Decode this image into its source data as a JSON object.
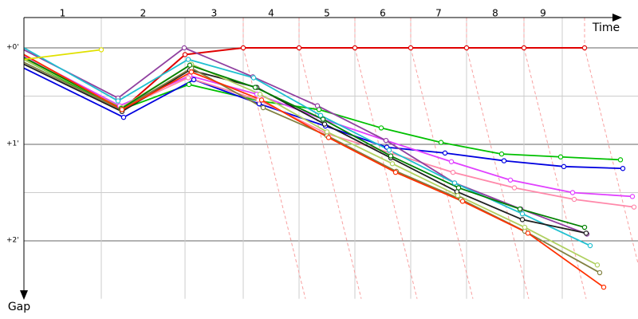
{
  "chart_data": {
    "type": "line",
    "x_label": "Time",
    "y_label": "Gap",
    "xlim": [
      0,
      77
    ],
    "ylim": [
      -0.314,
      2.6
    ],
    "yticks": [
      {
        "value": 0,
        "label": "+0'"
      },
      {
        "value": 1,
        "label": "+1'"
      },
      {
        "value": 2,
        "label": "+2'"
      }
    ],
    "minor_yticks": [
      0.5,
      1.5
    ],
    "laps": {
      "labels": [
        "1",
        "2",
        "3",
        "4",
        "5",
        "6",
        "7",
        "8",
        "9"
      ],
      "bounds": [
        0,
        9.7,
        20.2,
        27.5,
        34.5,
        41.5,
        48.5,
        55.5,
        62.7,
        67.5
      ]
    },
    "series": [
      {
        "color": "#e00000",
        "x": [
          0,
          12.3,
          20.2,
          27.5,
          34.5,
          41.5,
          48.5,
          55.5,
          62.7,
          70.3
        ],
        "values": [
          0.1,
          0.64,
          0.07,
          0,
          0,
          0,
          0,
          0,
          0,
          0
        ]
      },
      {
        "color": "#00c000",
        "x": [
          0,
          12.2,
          20.7,
          29.5,
          37,
          44.8,
          52.3,
          59.9,
          67.3,
          74.8
        ],
        "values": [
          0.12,
          0.64,
          0.38,
          0.55,
          0.64,
          0.83,
          0.98,
          1.1,
          1.13,
          1.16
        ]
      },
      {
        "color": "#0000e0",
        "x": [
          0,
          12.5,
          21.3,
          29.5,
          37.8,
          45.5,
          52.8,
          60.2,
          67.7,
          75.1
        ],
        "values": [
          0.21,
          0.72,
          0.33,
          0.58,
          0.81,
          1.03,
          1.09,
          1.17,
          1.23,
          1.25
        ]
      },
      {
        "color": "#e040ff",
        "x": [
          0,
          12,
          20.8,
          29.2,
          37.5,
          45.4,
          53.6,
          61,
          68.8,
          76.3
        ],
        "values": [
          0.08,
          0.6,
          0.29,
          0.48,
          0.74,
          0.96,
          1.18,
          1.37,
          1.5,
          1.54
        ]
      },
      {
        "color": "#ff88aa",
        "x": [
          0,
          12.2,
          20.6,
          29.4,
          38,
          46,
          53.8,
          61.5,
          69,
          76.5
        ],
        "values": [
          0.1,
          0.63,
          0.31,
          0.54,
          0.89,
          1.09,
          1.29,
          1.45,
          1.57,
          1.65
        ]
      },
      {
        "color": "#9040a0",
        "x": [
          0,
          11.8,
          20.1,
          28.7,
          36.8,
          45.4,
          54,
          62.3,
          70.6
        ],
        "values": [
          0.02,
          0.52,
          0,
          0.3,
          0.6,
          0.96,
          1.4,
          1.67,
          1.93
        ]
      },
      {
        "color": "#20c0d0",
        "x": [
          0,
          11.8,
          20.6,
          28.8,
          37.2,
          45.8,
          54,
          62.5,
          71
        ],
        "values": [
          0,
          0.55,
          0.12,
          0.31,
          0.7,
          1.06,
          1.4,
          1.72,
          2.05
        ]
      },
      {
        "color": "#202020",
        "x": [
          0,
          12.3,
          20.8,
          29.2,
          37.7,
          46,
          54.3,
          62.5,
          70.5
        ],
        "values": [
          0.17,
          0.66,
          0.23,
          0.41,
          0.79,
          1.14,
          1.49,
          1.78,
          1.92
        ]
      },
      {
        "color": "#808040",
        "x": [
          0,
          12.2,
          21,
          30,
          38,
          46.7,
          54.8,
          62.8,
          72.2
        ],
        "values": [
          0.15,
          0.64,
          0.21,
          0.62,
          0.91,
          1.28,
          1.57,
          1.9,
          2.33
        ]
      },
      {
        "color": "#b0d060",
        "x": [
          0,
          12.2,
          21,
          29.6,
          38,
          46.2,
          54.4,
          62.8,
          71.9
        ],
        "values": [
          0.12,
          0.62,
          0.17,
          0.48,
          0.87,
          1.2,
          1.53,
          1.86,
          2.25
        ]
      },
      {
        "color": "#008000",
        "x": [
          0,
          12.2,
          20.8,
          29,
          37.5,
          46,
          54.5,
          62.2,
          70.3
        ],
        "values": [
          0.1,
          0.63,
          0.18,
          0.41,
          0.74,
          1.12,
          1.45,
          1.67,
          1.86
        ]
      },
      {
        "color": "#ff3000",
        "x": [
          0,
          12.3,
          21,
          29.8,
          38.2,
          46.6,
          55,
          63.2,
          72.7
        ],
        "values": [
          0.07,
          0.64,
          0.25,
          0.54,
          0.93,
          1.29,
          1.59,
          1.92,
          2.48
        ]
      },
      {
        "color": "#e0e000",
        "x": [
          0,
          9.7
        ],
        "values": [
          0.12,
          0.02
        ]
      }
    ]
  }
}
